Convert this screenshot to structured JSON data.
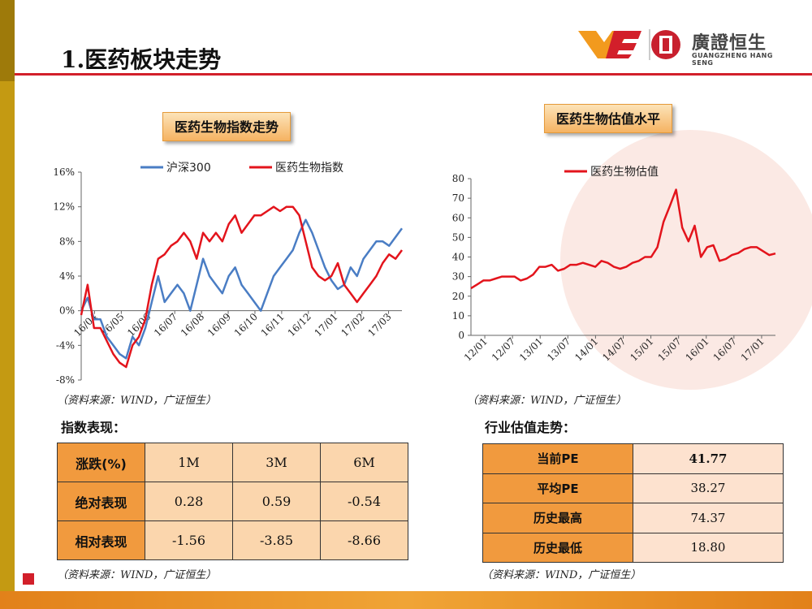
{
  "header": {
    "title": "1.医药板块走势"
  },
  "logo": {
    "name_cn": "廣證恒生",
    "name_en": "GUANGZHENG HANG SENG"
  },
  "left_panel": {
    "title": "医药生物指数走势",
    "source": "（资料来源：WIND，广证恒生）",
    "section_label": "指数表现："
  },
  "right_panel": {
    "title": "医药生物估值水平",
    "source": "（资料来源：WIND，广证恒生）",
    "section_label": "行业估值走势："
  },
  "performance_table": {
    "header": [
      "涨跌(%)",
      "1M",
      "3M",
      "6M"
    ],
    "rows": [
      {
        "label": "绝对表现",
        "values": [
          "0.28",
          "0.59",
          "-0.54"
        ]
      },
      {
        "label": "相对表现",
        "values": [
          "-1.56",
          "-3.85",
          "-8.66"
        ]
      }
    ],
    "source": "（资料来源：WIND，广证恒生）"
  },
  "valuation_table": {
    "rows": [
      {
        "label": "当前PE",
        "value": "41.77"
      },
      {
        "label": "平均PE",
        "value": "38.27"
      },
      {
        "label": "历史最高",
        "value": "74.37"
      },
      {
        "label": "历史最低",
        "value": "18.80"
      }
    ],
    "source": "（资料来源：WIND，广证恒生）"
  },
  "colors": {
    "accent_red": "#d21f2a",
    "hs300_blue": "#4a7dc4",
    "pharma_red": "#e3141c",
    "table_header": "#f19a3e",
    "table_cell": "#fbd6ad",
    "gold_bar": "#c49a12"
  },
  "chart_data": [
    {
      "type": "line",
      "ylim": [
        -8,
        16
      ],
      "yticks": [
        -8,
        -4,
        0,
        4,
        8,
        12,
        16
      ],
      "ytick_labels": [
        "-8%",
        "-4%",
        "0%",
        "4%",
        "8%",
        "12%",
        "16%"
      ],
      "xtick_labels": [
        "16/04",
        "16/05",
        "16/06",
        "16/07",
        "16/08",
        "16/09",
        "16/10",
        "16/11",
        "16/12",
        "17/01",
        "17/02",
        "17/03"
      ],
      "legend": "top",
      "series": [
        {
          "name": "沪深300",
          "color": "#4a7dc4",
          "values": [
            0,
            1.5,
            -1,
            -1,
            -3,
            -4,
            -5,
            -5.5,
            -3,
            -4,
            -2,
            1,
            4,
            1,
            2,
            3,
            2,
            0,
            3,
            6,
            4,
            3,
            2,
            4,
            5,
            3,
            2,
            1,
            0,
            2,
            4,
            5,
            6,
            7,
            9,
            10.5,
            9,
            7,
            5,
            3.5,
            2.5,
            3,
            5,
            4,
            6,
            7,
            8,
            8,
            7.5,
            8.5,
            9.5
          ]
        },
        {
          "name": "医药生物指数",
          "color": "#e3141c",
          "values": [
            -0.5,
            3,
            -2,
            -2,
            -3.5,
            -5,
            -6,
            -6.5,
            -4,
            -3,
            -1,
            3,
            6,
            6.5,
            7.5,
            8,
            9,
            8,
            6,
            9,
            8,
            9,
            8,
            10,
            11,
            9,
            10,
            11,
            11,
            11.5,
            12,
            11.5,
            12,
            12,
            11,
            8,
            5,
            4,
            3.5,
            4,
            5.5,
            3,
            2,
            1,
            2,
            3,
            4,
            5.5,
            6.5,
            6,
            7
          ]
        }
      ]
    },
    {
      "type": "line",
      "ylim": [
        0,
        80
      ],
      "yticks": [
        0,
        10,
        20,
        30,
        40,
        50,
        60,
        70,
        80
      ],
      "xtick_labels": [
        "12/01",
        "12/07",
        "13/01",
        "13/07",
        "14/01",
        "14/07",
        "15/01",
        "15/07",
        "16/01",
        "16/07",
        "17/01"
      ],
      "legend": "top",
      "series": [
        {
          "name": "医药生物估值",
          "color": "#e3141c",
          "values": [
            24,
            26,
            28,
            28,
            29,
            30,
            30,
            30,
            28,
            29,
            31,
            35,
            35,
            36,
            33,
            34,
            36,
            36,
            37,
            36,
            35,
            38,
            37,
            35,
            34,
            35,
            37,
            38,
            40,
            40,
            45,
            58,
            66,
            74.37,
            55,
            48,
            56,
            40,
            45,
            46,
            38,
            39,
            41,
            42,
            44,
            45,
            45,
            43,
            41,
            41.77
          ]
        }
      ]
    }
  ]
}
